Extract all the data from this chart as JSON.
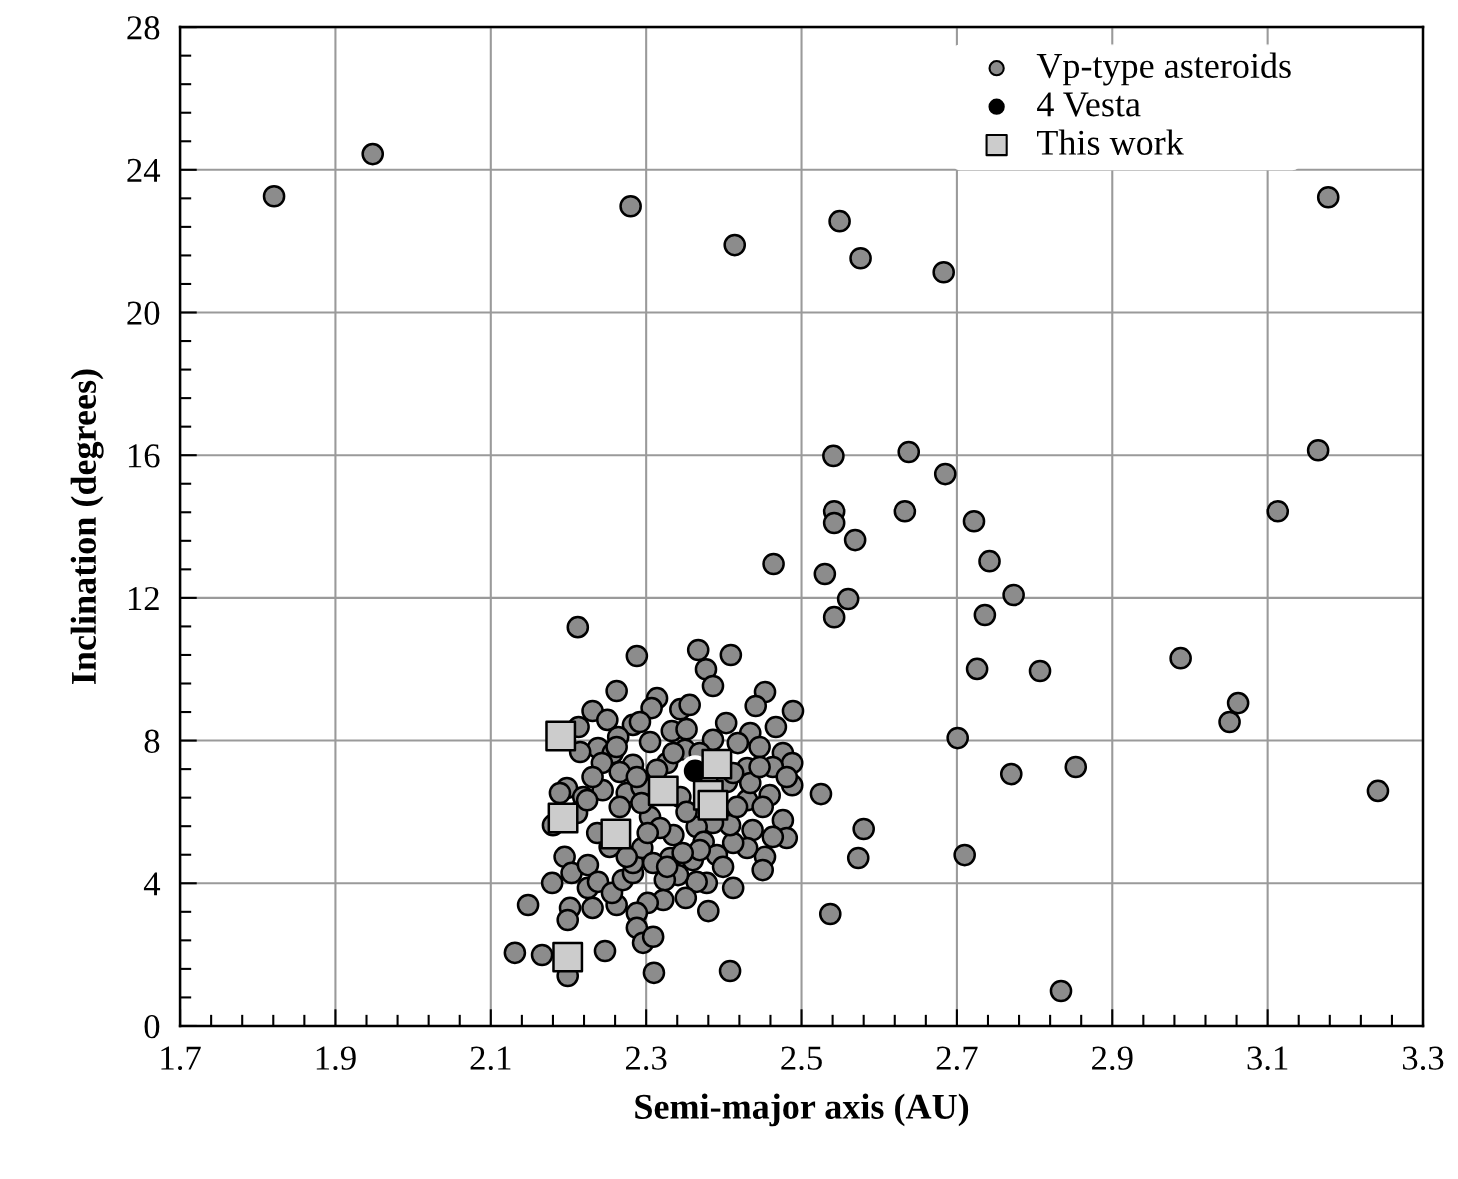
{
  "chart_data": {
    "type": "scatter",
    "xlabel": "Semi-major axis (AU)",
    "ylabel": "Inclination (degrees)",
    "xlim": [
      1.7,
      3.3
    ],
    "xticks": [
      1.7,
      1.9,
      2.1,
      2.3,
      2.5,
      2.7,
      2.9,
      3.1,
      3.3
    ],
    "ylim": [
      0,
      28
    ],
    "yticks": [
      0,
      4,
      8,
      12,
      16,
      20,
      24,
      28
    ],
    "grid": true,
    "legend": "top right",
    "series": [
      {
        "name": "Vp-type asteroids",
        "color": "#8c8c8c",
        "marker": "circle",
        "x": [
          1.821,
          1.948,
          2.28,
          2.414,
          2.549,
          2.576,
          2.683,
          3.178,
          2.638,
          2.541,
          2.685,
          3.165,
          2.542,
          2.542,
          2.633,
          2.722,
          3.113,
          2.569,
          2.464,
          2.742,
          2.53,
          2.56,
          2.773,
          2.542,
          2.736,
          2.212,
          2.988,
          2.807,
          2.726,
          3.062,
          3.051,
          2.701,
          2.77,
          2.853,
          3.242,
          2.525,
          2.58,
          2.573,
          2.71,
          2.537,
          2.834,
          2.408,
          2.31,
          2.199,
          2.131,
          2.166,
          2.247,
          2.148,
          2.288,
          2.367,
          2.409,
          2.377,
          2.386,
          2.262,
          2.314,
          2.307,
          2.344,
          2.356,
          2.453,
          2.441,
          2.489,
          2.467,
          2.231,
          2.25,
          2.213,
          2.283,
          2.292,
          2.333,
          2.352,
          2.403,
          2.434,
          2.264,
          2.305,
          2.238,
          2.386,
          2.418,
          2.446,
          2.476,
          2.488,
          2.463,
          2.43,
          2.327,
          2.283,
          2.257,
          2.215,
          2.243,
          2.488,
          2.481,
          2.459,
          2.43,
          2.434,
          2.404,
          2.198,
          2.189,
          2.219,
          2.275,
          2.294,
          2.244,
          2.344,
          2.476,
          2.481,
          2.453,
          2.45,
          2.437,
          2.43,
          2.412,
          2.408,
          2.386,
          2.365,
          2.374,
          2.335,
          2.331,
          2.36,
          2.391,
          2.399,
          2.412,
          2.378,
          2.365,
          2.341,
          2.324,
          2.38,
          2.351,
          2.322,
          2.302,
          2.288,
          2.288,
          2.296,
          2.309,
          2.262,
          2.231,
          2.202,
          2.199,
          2.179,
          2.195,
          2.204,
          2.225,
          2.225,
          2.238,
          2.256,
          2.27,
          2.283,
          2.283,
          2.295,
          2.275,
          2.253,
          2.237,
          2.18,
          2.211,
          2.224,
          2.305,
          2.318,
          2.294,
          2.266,
          2.302,
          2.352,
          2.314,
          2.266,
          2.231,
          2.35,
          2.369,
          2.446,
          2.45,
          2.417,
          2.463,
          2.369,
          2.347,
          2.309,
          2.327,
          2.412,
          2.262,
          2.335,
          2.288
        ],
        "values": [
          23.26,
          24.44,
          22.98,
          21.89,
          22.56,
          21.52,
          21.13,
          23.23,
          16.09,
          15.98,
          15.47,
          16.14,
          14.43,
          14.1,
          14.43,
          14.15,
          14.43,
          13.62,
          12.95,
          13.03,
          12.67,
          11.97,
          12.08,
          11.46,
          11.52,
          11.18,
          10.31,
          9.95,
          10.01,
          9.05,
          8.52,
          8.07,
          7.06,
          7.26,
          6.59,
          6.5,
          5.52,
          4.71,
          4.79,
          3.14,
          0.98,
          1.54,
          1.49,
          1.4,
          2.05,
          1.99,
          2.1,
          3.39,
          10.37,
          10.54,
          10.4,
          10.0,
          9.53,
          9.39,
          9.19,
          8.91,
          8.88,
          9.0,
          9.36,
          8.97,
          8.83,
          8.38,
          8.83,
          8.58,
          8.38,
          8.44,
          8.52,
          8.27,
          8.32,
          8.49,
          8.21,
          8.1,
          7.96,
          7.79,
          8.02,
          7.93,
          7.82,
          7.65,
          7.37,
          7.26,
          7.23,
          7.37,
          7.32,
          7.65,
          7.68,
          7.37,
          6.75,
          6.98,
          6.47,
          6.33,
          6.81,
          6.84,
          6.67,
          6.53,
          6.42,
          6.53,
          6.7,
          6.61,
          6.42,
          5.77,
          5.27,
          4.74,
          4.37,
          5.49,
          4.99,
          5.13,
          5.63,
          5.69,
          5.58,
          5.16,
          5.35,
          4.71,
          4.65,
          4.79,
          4.46,
          3.87,
          4.01,
          4.04,
          4.23,
          4.09,
          3.22,
          3.59,
          3.53,
          3.45,
          3.17,
          2.75,
          2.33,
          2.5,
          3.39,
          3.31,
          3.31,
          2.97,
          4.01,
          4.74,
          4.29,
          4.51,
          3.87,
          4.04,
          3.73,
          4.09,
          4.29,
          4.57,
          4.99,
          4.74,
          5.02,
          5.41,
          5.63,
          5.97,
          6.33,
          5.86,
          5.55,
          6.25,
          6.14,
          5.41,
          6.0,
          7.18,
          7.12,
          6.98,
          7.74,
          7.65,
          7.26,
          6.14,
          6.14,
          5.3,
          4.93,
          4.85,
          4.57,
          4.46,
          7.09,
          7.82,
          7.65,
          6.98
        ]
      },
      {
        "name": "4 Vesta",
        "color": "#000000",
        "marker": "circle",
        "x": [
          2.363
        ],
        "values": [
          7.15
        ]
      },
      {
        "name": "This work",
        "color": "#cccccc",
        "marker": "square",
        "x": [
          2.19,
          2.322,
          2.391,
          2.38,
          2.386,
          2.193,
          2.261,
          2.199
        ],
        "values": [
          8.13,
          6.59,
          7.34,
          6.47,
          6.19,
          5.83,
          5.38,
          1.93
        ]
      }
    ]
  }
}
